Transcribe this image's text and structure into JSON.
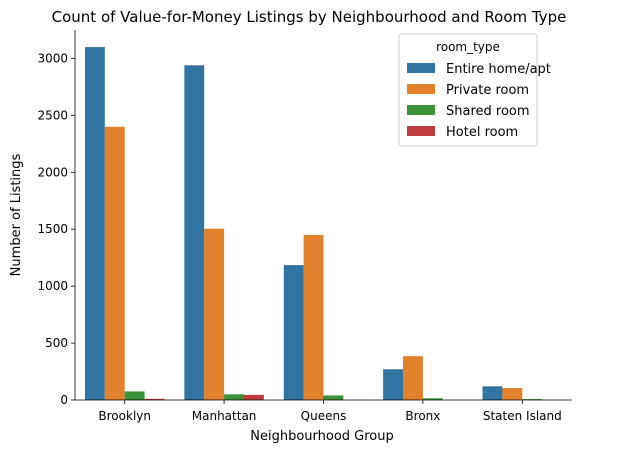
{
  "chart_data": {
    "type": "bar",
    "title": "Count of Value-for-Money Listings by Neighbourhood and Room Type",
    "xlabel": "Neighbourhood Group",
    "ylabel": "Number of Listings",
    "categories": [
      "Brooklyn",
      "Manhattan",
      "Queens",
      "Bronx",
      "Staten Island"
    ],
    "ylim": [
      0,
      3250
    ],
    "yticks": [
      0,
      500,
      1000,
      1500,
      2000,
      2500,
      3000
    ],
    "ytick_labels": [
      "0",
      "500",
      "1000",
      "1500",
      "2000",
      "2500",
      "3000"
    ],
    "legend": {
      "title": "room_type",
      "position": "top-right"
    },
    "grid": false,
    "series": [
      {
        "name": "Entire home/apt",
        "color": "#3274a1",
        "values": [
          3100,
          2940,
          1185,
          270,
          120
        ]
      },
      {
        "name": "Private room",
        "color": "#e1812c",
        "values": [
          2400,
          1505,
          1450,
          385,
          105
        ]
      },
      {
        "name": "Shared room",
        "color": "#3a923a",
        "values": [
          75,
          50,
          40,
          15,
          8
        ]
      },
      {
        "name": "Hotel room",
        "color": "#c03d3e",
        "values": [
          10,
          45,
          0,
          0,
          0
        ]
      }
    ]
  }
}
